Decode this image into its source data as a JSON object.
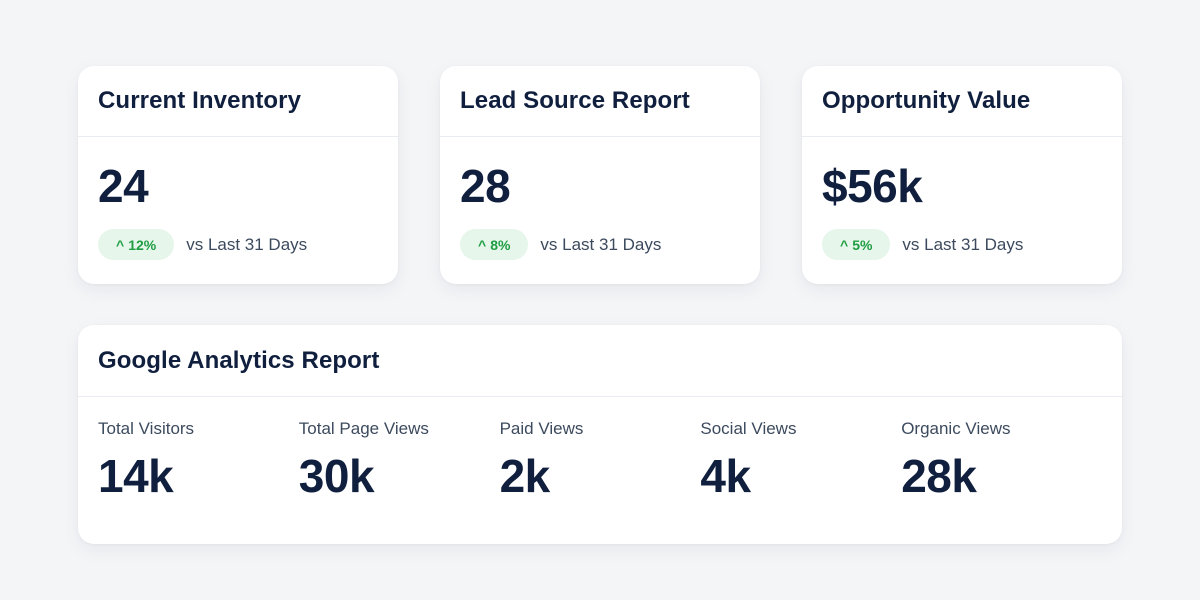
{
  "kpi_cards": [
    {
      "title": "Current Inventory",
      "value": "24",
      "delta": {
        "arrow": "^",
        "text": "12%"
      },
      "comparison": "vs Last 31 Days"
    },
    {
      "title": "Lead Source Report",
      "value": "28",
      "delta": {
        "arrow": "^",
        "text": "8%"
      },
      "comparison": "vs Last 31 Days"
    },
    {
      "title": "Opportunity Value",
      "value": "$56k",
      "delta": {
        "arrow": "^",
        "text": "5%"
      },
      "comparison": "vs Last 31 Days"
    }
  ],
  "analytics": {
    "title": "Google Analytics Report",
    "metrics": [
      {
        "label": "Total Visitors",
        "value": "14k"
      },
      {
        "label": "Total Page Views",
        "value": "30k"
      },
      {
        "label": "Paid Views",
        "value": "2k"
      },
      {
        "label": "Social Views",
        "value": "4k"
      },
      {
        "label": "Organic Views",
        "value": "28k"
      }
    ]
  },
  "colors": {
    "background": "#f4f5f7",
    "card": "#ffffff",
    "text_primary": "#0f1f3d",
    "text_secondary": "#3c4a5e",
    "positive_badge_bg": "#e6f6ea",
    "positive_badge_text": "#1f9d43"
  }
}
